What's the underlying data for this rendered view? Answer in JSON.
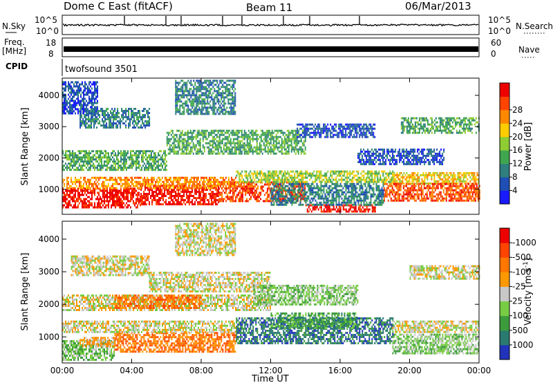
{
  "header": {
    "station": "Dome C East (fitACF)",
    "beam": "Beam 11",
    "date": "06/Mar/2013"
  },
  "top_panels": {
    "nsky_label": "N.Sky",
    "nsky_ticks": [
      "10^5",
      "10^0"
    ],
    "nsearch_label": "N.Search",
    "nsearch_ticks": [
      "10^5",
      "10^0"
    ],
    "freq_label_line1": "Freq.",
    "freq_label_line2": "[MHz]",
    "freq_ticks": [
      "18",
      "8"
    ],
    "nave_label": "Nave",
    "nave_ticks": [
      "60",
      "0"
    ],
    "cpid_label": "CPID",
    "cpid_value": "twofsound 3501"
  },
  "chart_data": [
    {
      "type": "heatmap",
      "name": "power",
      "ylabel": "Slant Range [km]",
      "yticks": [
        1000,
        2000,
        3000,
        4000
      ],
      "ylim": [
        200,
        4550
      ],
      "xlim": [
        0,
        24
      ],
      "colorbar_label": "Power [dB]",
      "colorbar_ticks": [
        "4",
        "8",
        "12",
        "16",
        "20",
        "24",
        "28"
      ],
      "colorbar_colors": [
        "#1a1aff",
        "#1f4eb4",
        "#2f7f7f",
        "#3fa64f",
        "#8fcc33",
        "#ffcc00",
        "#ff8800",
        "#ff4400",
        "#ee0000"
      ],
      "bands": [
        {
          "t0": 0.0,
          "t1": 4.5,
          "r0": 450,
          "r1": 1050,
          "level": 8
        },
        {
          "t0": 4.5,
          "t1": 9.0,
          "r0": 500,
          "r1": 1150,
          "level": 8
        },
        {
          "t0": 9.0,
          "t1": 14.0,
          "r0": 650,
          "r1": 1250,
          "level": 7
        },
        {
          "t0": 0.0,
          "t1": 10.0,
          "r0": 1050,
          "r1": 1400,
          "level": 6
        },
        {
          "t0": 10.0,
          "t1": 19.0,
          "r0": 1250,
          "r1": 1600,
          "level": 4
        },
        {
          "t0": 19.0,
          "t1": 24.0,
          "r0": 1200,
          "r1": 1550,
          "level": 5
        },
        {
          "t0": 18.5,
          "t1": 24.0,
          "r0": 650,
          "r1": 1200,
          "level": 7
        },
        {
          "t0": 14.0,
          "t1": 18.0,
          "r0": 300,
          "r1": 520,
          "level": 8
        },
        {
          "t0": 12.0,
          "t1": 18.5,
          "r0": 520,
          "r1": 1200,
          "level": 2
        },
        {
          "t0": 0.0,
          "t1": 6.0,
          "r0": 1650,
          "r1": 2250,
          "level": 3
        },
        {
          "t0": 6.0,
          "t1": 14.0,
          "r0": 2150,
          "r1": 2900,
          "level": 3
        },
        {
          "t0": 19.5,
          "t1": 24.0,
          "r0": 2800,
          "r1": 3300,
          "level": 3
        },
        {
          "t0": 1.0,
          "t1": 5.0,
          "r0": 3000,
          "r1": 3600,
          "level": 2
        },
        {
          "t0": 13.5,
          "t1": 18.0,
          "r0": 2650,
          "r1": 3100,
          "level": 1
        },
        {
          "t0": 6.5,
          "t1": 10.0,
          "r0": 3400,
          "r1": 4500,
          "level": 2
        },
        {
          "t0": 17.0,
          "t1": 22.0,
          "r0": 1800,
          "r1": 2300,
          "level": 1
        },
        {
          "t0": 0.0,
          "t1": 2.0,
          "r0": 3400,
          "r1": 4450,
          "level": 1
        }
      ]
    },
    {
      "type": "heatmap",
      "name": "velocity",
      "ylabel": "Slant Range [km]",
      "yticks": [
        1000,
        2000,
        3000,
        4000
      ],
      "ylim": [
        200,
        4550
      ],
      "xlim": [
        0,
        24
      ],
      "xlabel": "Time UT",
      "xticks": [
        "00:00",
        "04:00",
        "08:00",
        "12:00",
        "16:00",
        "20:00",
        "00:00"
      ],
      "colorbar_label": "Velocity [m s^-1]",
      "colorbar_ticks": [
        "1000",
        "500",
        "100",
        "25",
        "-25",
        "-100",
        "-500",
        "-1000"
      ],
      "colorbar_colors": [
        "#2233bb",
        "#2a7a70",
        "#3c9c3c",
        "#77cc44",
        "#c8c8c8",
        "#ff9900",
        "#ff7700",
        "#ff4400",
        "#ee0000"
      ],
      "bands": [
        {
          "t0": 0.0,
          "t1": 3.0,
          "r0": 300,
          "r1": 900,
          "level": 3
        },
        {
          "t0": 3.0,
          "t1": 10.0,
          "r0": 550,
          "r1": 1150,
          "level": 6
        },
        {
          "t0": 1.0,
          "t1": 3.0,
          "r0": 700,
          "r1": 1000,
          "level": 5
        },
        {
          "t0": 0.0,
          "t1": 10.0,
          "r0": 1150,
          "r1": 1500,
          "level": 4
        },
        {
          "t0": 10.0,
          "t1": 19.0,
          "r0": 800,
          "r1": 1600,
          "level": 1
        },
        {
          "t0": 12.0,
          "t1": 17.0,
          "r0": 1300,
          "r1": 1750,
          "level": 2
        },
        {
          "t0": 19.0,
          "t1": 24.0,
          "r0": 500,
          "r1": 1100,
          "level": 3
        },
        {
          "t0": 19.0,
          "t1": 24.0,
          "r0": 1150,
          "r1": 1500,
          "level": 4
        },
        {
          "t0": 0.0,
          "t1": 12.0,
          "r0": 1800,
          "r1": 2300,
          "level": 4
        },
        {
          "t0": 5.0,
          "t1": 12.0,
          "r0": 2400,
          "r1": 3000,
          "level": 4
        },
        {
          "t0": 20.0,
          "t1": 24.0,
          "r0": 2800,
          "r1": 3200,
          "level": 4
        },
        {
          "t0": 0.5,
          "t1": 5.0,
          "r0": 2900,
          "r1": 3500,
          "level": 4
        },
        {
          "t0": 3.0,
          "t1": 8.0,
          "r0": 1900,
          "r1": 2300,
          "level": 6
        },
        {
          "t0": 11.0,
          "t1": 17.0,
          "r0": 2000,
          "r1": 2600,
          "level": 3
        },
        {
          "t0": 6.5,
          "t1": 10.0,
          "r0": 3500,
          "r1": 4500,
          "level": 4
        }
      ]
    }
  ]
}
